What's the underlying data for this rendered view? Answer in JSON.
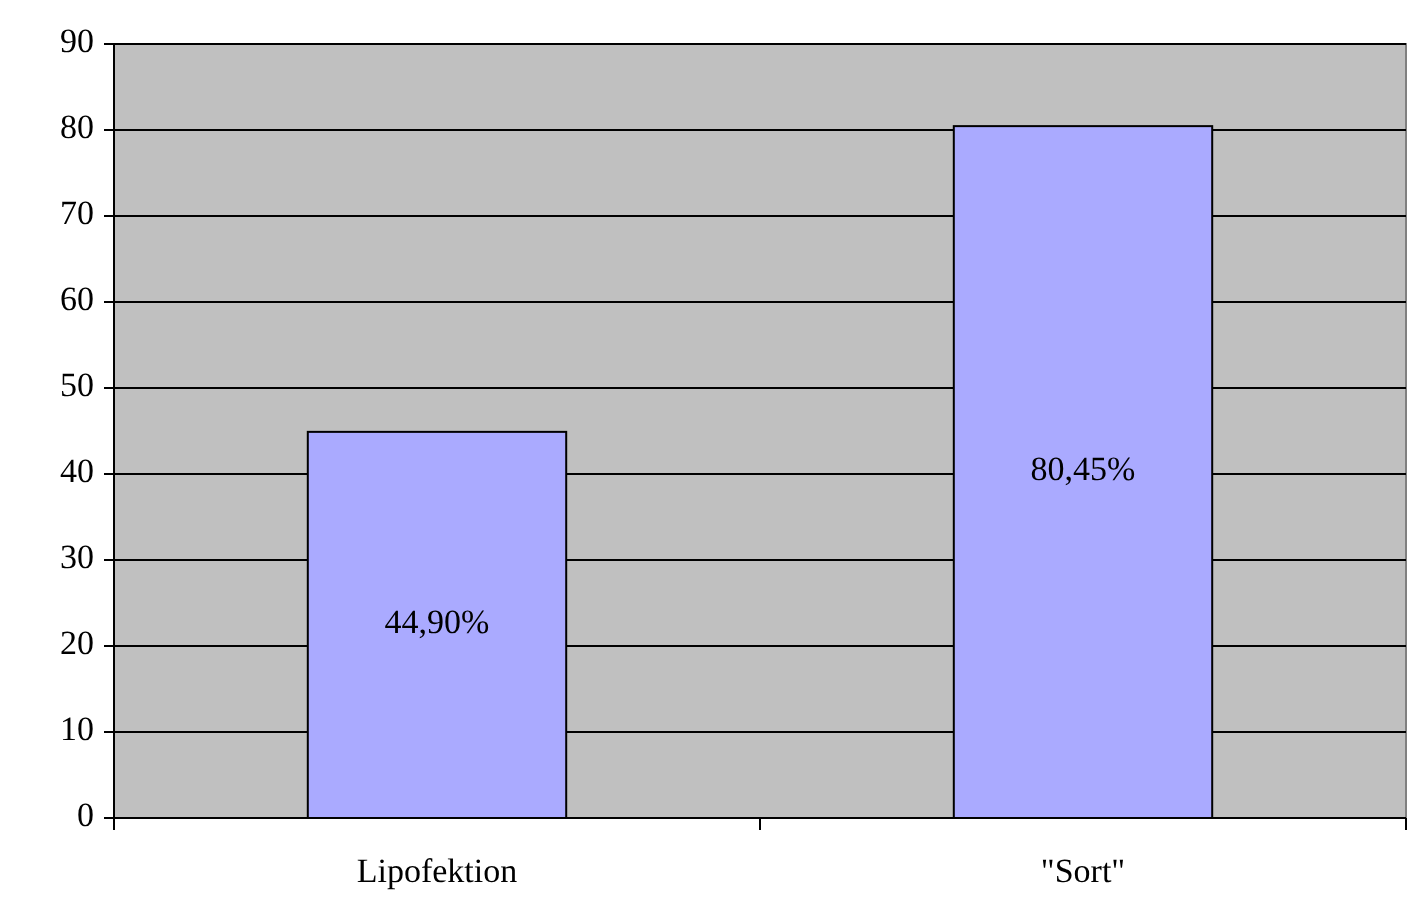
{
  "chart_data": {
    "type": "bar",
    "categories": [
      "Lipofektion",
      "\"Sort\""
    ],
    "values": [
      44.9,
      80.45
    ],
    "value_labels": [
      "44,90%",
      "80,45%"
    ],
    "color": "#aaaaff",
    "ylim": [
      0,
      90
    ],
    "yticks": [
      0,
      10,
      20,
      30,
      40,
      50,
      60,
      70,
      80,
      90
    ],
    "grid": "y"
  }
}
